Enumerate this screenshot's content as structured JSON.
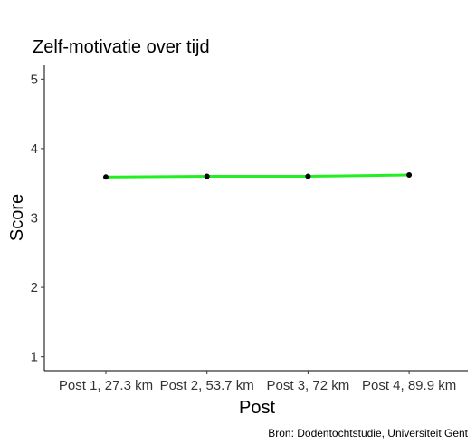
{
  "chart_data": {
    "type": "line",
    "title": "Zelf-motivatie over tijd",
    "xlabel": "Post",
    "ylabel": "Score",
    "caption": "Bron: Dodentochtstudie, Universiteit Gent",
    "categories": [
      "Post 1, 27.3 km",
      "Post 2, 53.7 km",
      "Post 3, 72 km",
      "Post 4, 89.9 km"
    ],
    "values": [
      3.59,
      3.6,
      3.6,
      3.62
    ],
    "ylim": [
      0.8,
      5.2
    ],
    "yticks": [
      1,
      2,
      3,
      4,
      5
    ],
    "grid": false,
    "line_color": "#22ee22",
    "point_color": "#000000"
  }
}
